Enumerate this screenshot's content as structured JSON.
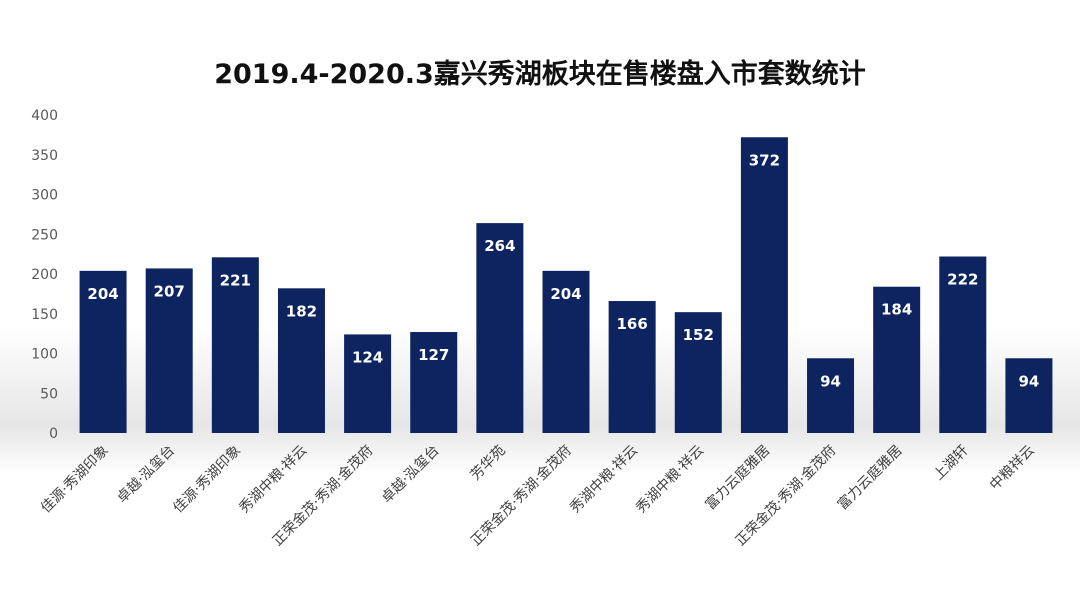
{
  "chart_data": {
    "type": "bar",
    "title": "2019.4-2020.3嘉兴秀湖板块在售楼盘入市套数统计",
    "categories": [
      "佳源·秀湖印象",
      "卓越·泓玺台",
      "佳源·秀湖印象",
      "秀湖中粮·祥云",
      "正荣金茂·秀湖·金茂府",
      "卓越·泓玺台",
      "芳华苑",
      "正荣金茂·秀湖·金茂府",
      "秀湖中粮·祥云",
      "秀湖中粮·祥云",
      "富力云庭雅居",
      "正荣金茂·秀湖·金茂府",
      "富力云庭雅居",
      "上湖轩",
      "中粮祥云"
    ],
    "values": [
      204,
      207,
      221,
      182,
      124,
      127,
      264,
      204,
      166,
      152,
      372,
      94,
      184,
      222,
      94
    ],
    "ylim": [
      0,
      400
    ],
    "yticks": [
      0,
      50,
      100,
      150,
      200,
      250,
      300,
      350,
      400
    ],
    "bar_color": "#0d2461",
    "label_color": "#ffffff",
    "grid": false
  }
}
